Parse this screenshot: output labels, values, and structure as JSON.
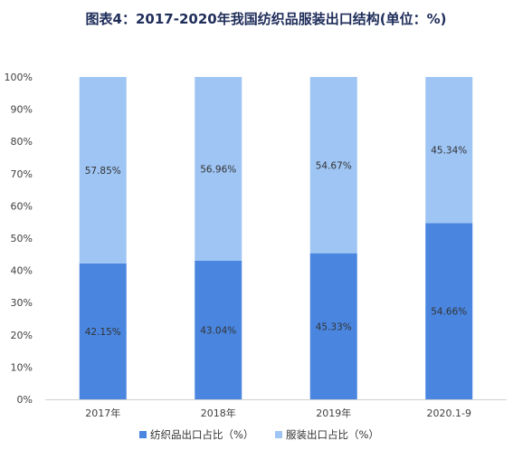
{
  "chart_data": {
    "type": "bar",
    "stacked": true,
    "title": "图表4：2017-2020年我国纺织品服装出口结构(单位：%)",
    "categories": [
      "2017年",
      "2018年",
      "2019年",
      "2020.1-9"
    ],
    "series": [
      {
        "name": "纺织品出口占比（%）",
        "values": [
          42.15,
          43.04,
          45.33,
          54.66
        ],
        "labels": [
          "42.15%",
          "43.04%",
          "45.33%",
          "54.66%"
        ]
      },
      {
        "name": "服装出口占比（%）",
        "values": [
          57.85,
          56.96,
          54.67,
          45.34
        ],
        "labels": [
          "57.85%",
          "56.96%",
          "54.67%",
          "45.34%"
        ]
      }
    ],
    "ylim": [
      0,
      100
    ],
    "yticks": [
      0,
      10,
      20,
      30,
      40,
      50,
      60,
      70,
      80,
      90,
      100
    ],
    "ytick_labels": [
      "0%",
      "10%",
      "20%",
      "30%",
      "40%",
      "50%",
      "60%",
      "70%",
      "80%",
      "90%",
      "100%"
    ],
    "grid": false,
    "legend": "bottom-center",
    "colors": [
      "#4a86e0",
      "#9fc5f4"
    ]
  }
}
